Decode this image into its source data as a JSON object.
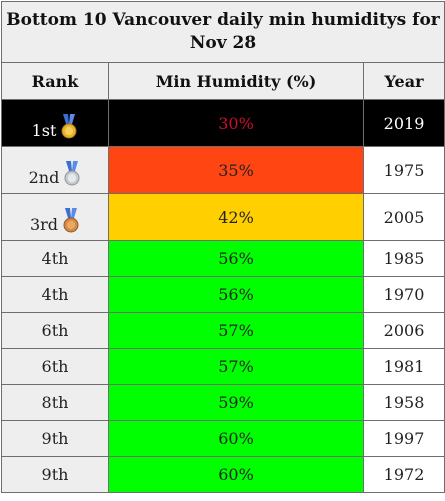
{
  "title": "Bottom 10 Vancouver daily min humiditys for Nov 28",
  "headers": {
    "rank": "Rank",
    "humidity": "Min Humidity (%)",
    "year": "Year"
  },
  "colors": {
    "first": "#000000",
    "first_text": "#c8102e",
    "second": "#ff4612",
    "third": "#ffcf00",
    "rest": "#00ff00"
  },
  "rows": [
    {
      "rank": "1st",
      "medal": "gold-medal-icon",
      "humidity": "30%",
      "year": "2019"
    },
    {
      "rank": "2nd",
      "medal": "silver-medal-icon",
      "humidity": "35%",
      "year": "1975"
    },
    {
      "rank": "3rd",
      "medal": "bronze-medal-icon",
      "humidity": "42%",
      "year": "2005"
    },
    {
      "rank": "4th",
      "humidity": "56%",
      "year": "1985"
    },
    {
      "rank": "4th",
      "humidity": "56%",
      "year": "1970"
    },
    {
      "rank": "6th",
      "humidity": "57%",
      "year": "2006"
    },
    {
      "rank": "6th",
      "humidity": "57%",
      "year": "1981"
    },
    {
      "rank": "8th",
      "humidity": "59%",
      "year": "1958"
    },
    {
      "rank": "9th",
      "humidity": "60%",
      "year": "1997"
    },
    {
      "rank": "9th",
      "humidity": "60%",
      "year": "1972"
    }
  ]
}
